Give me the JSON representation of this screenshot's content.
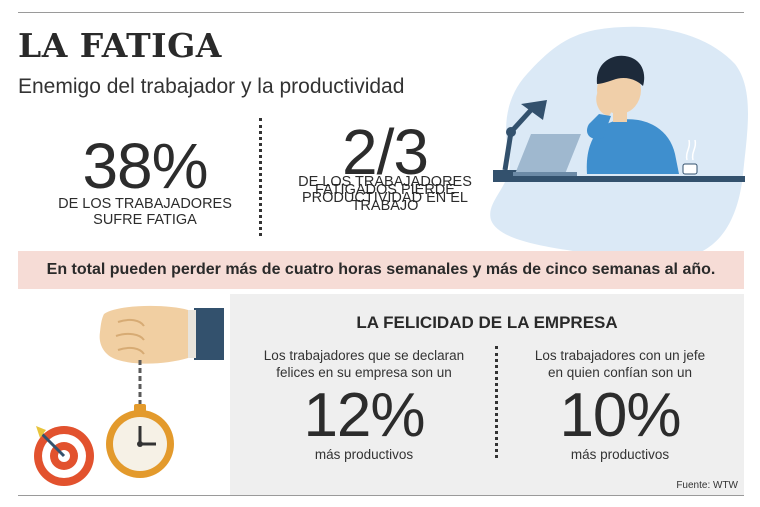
{
  "header": {
    "title": "LA FATIGA",
    "subtitle": "Enemigo del trabajador y la productividad"
  },
  "stats": [
    {
      "value": "38%",
      "caption_lines": [
        "DE LOS TRABAJADORES",
        "SUFRE FATIGA"
      ]
    },
    {
      "value": "2/3",
      "caption_lines": [
        "DE LOS TRABAJADORES",
        "FATIGADOS PIERDE",
        "PRODUCTIVIDAD EN EL",
        "TRABAJO"
      ]
    }
  ],
  "banner": {
    "text": "En total pueden perder más de cuatro horas semanales y más de cinco semanas al año."
  },
  "happiness": {
    "title": "LA FELICIDAD DE LA EMPRESA",
    "items": [
      {
        "desc_lines": [
          "Los trabajadores que se declaran",
          "felices en su empresa son un"
        ],
        "value": "12%",
        "sub": "más productivos"
      },
      {
        "desc_lines": [
          "Los trabajadores con un jefe",
          "en quien confían son un"
        ],
        "value": "10%",
        "sub": "más productivos"
      }
    ]
  },
  "source": "Fuente: WTW",
  "colors": {
    "banner_bg": "#f6dcd6",
    "panel_bg": "#efefef",
    "illustration_blob": "#dbe9f6",
    "shirt": "#3f8fce",
    "desk": "#33516d"
  }
}
